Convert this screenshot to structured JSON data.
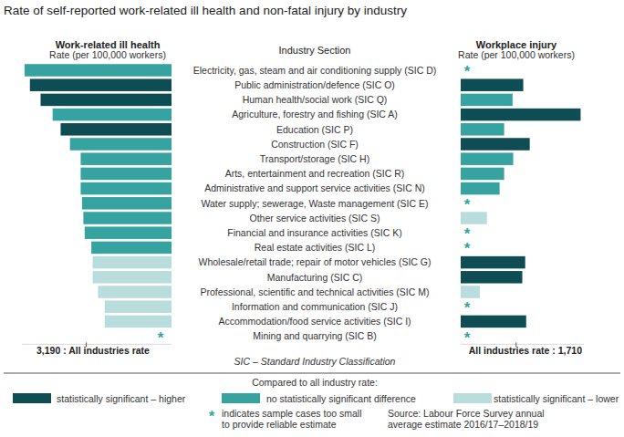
{
  "chart_data": {
    "type": "bar",
    "orientation": "horizontal",
    "title": "Rate of self-reported work-related ill health and non-fatal injury by industry",
    "category_header": "Industry Section",
    "categories": [
      "Electricity, gas, steam and air conditioning supply (SIC D)",
      "Public administration/defence (SIC O)",
      "Human health/social work (SIC Q)",
      "Agriculture, forestry and fishing (SIC A)",
      "Education (SIC P)",
      "Construction (SIC F)",
      "Transport/storage (SIC H)",
      "Arts, entertainment and recreation (SIC R)",
      "Administrative and support service activities (SIC N)",
      "Water supply; sewerage, Waste management (SIC E)",
      "Other service activities (SIC S)",
      "Financial and insurance activities (SIC K)",
      "Real estate activities (SIC L)",
      "Wholesale/retail trade; repair of motor vehicles (SIC G)",
      "Manufacturing (SIC C)",
      "Professional, scientific and technical activities (SIC M)",
      "Information and communication (SIC J)",
      "Accommodation/food service activities (SIC I)",
      "Mining and quarrying (SIC B)"
    ],
    "series": [
      {
        "name": "Work-related ill health",
        "unit_label": "Rate (per 100,000 workers)",
        "values": [
          5500,
          5300,
          4900,
          4450,
          4150,
          3800,
          3400,
          3400,
          3400,
          3350,
          3300,
          3250,
          3000,
          2950,
          2950,
          2750,
          2500,
          2500,
          null
        ],
        "colors": [
          "#37a3a0",
          "#0e4d54",
          "#0e4d54",
          "#37a3a0",
          "#0e4d54",
          "#37a3a0",
          "#37a3a0",
          "#37a3a0",
          "#37a3a0",
          "#37a3a0",
          "#37a3a0",
          "#37a3a0",
          "#37a3a0",
          "#b9dddc",
          "#b9dddc",
          "#b9dddc",
          "#b9dddc",
          "#b9dddc",
          null
        ],
        "xlim": [
          0,
          5600
        ],
        "all_industries_rate": {
          "value": 3190,
          "label": "3,190 : All industries rate"
        }
      },
      {
        "name": "Workplace injury",
        "unit_label": "Rate (per 100,000 workers)",
        "values": [
          null,
          1930,
          1600,
          3700,
          1340,
          2130,
          1620,
          1340,
          1200,
          null,
          810,
          null,
          null,
          1990,
          1900,
          590,
          null,
          2020,
          null
        ],
        "colors": [
          null,
          "#0e4d54",
          "#37a3a0",
          "#0e4d54",
          "#37a3a0",
          "#0e4d54",
          "#37a3a0",
          "#37a3a0",
          "#37a3a0",
          null,
          "#b9dddc",
          null,
          null,
          "#0e4d54",
          "#0e4d54",
          "#b9dddc",
          null,
          "#0e4d54",
          null
        ],
        "xlim": [
          0,
          3800
        ],
        "all_industries_rate": {
          "value": 1710,
          "label": "All industries rate : 1,710"
        }
      }
    ],
    "tick_labels": false,
    "grid": false,
    "note": "SIC – Standard Industry Classification",
    "legend_title": "Compared to all industry rate:",
    "legend_items": [
      {
        "label": "statistically significant – higher",
        "color": "#0e4d54"
      },
      {
        "label": "no statistically significant difference",
        "color": "#37a3a0"
      },
      {
        "label": "statistically significant – lower",
        "color": "#b9dddc"
      }
    ],
    "star_note": {
      "symbol": "*",
      "lines": [
        "indicates sample cases too small",
        "to provide reliable estimate"
      ]
    },
    "source": [
      "Source: Labour Force Survey annual",
      "average estimate 2016/17–2018/19"
    ]
  }
}
